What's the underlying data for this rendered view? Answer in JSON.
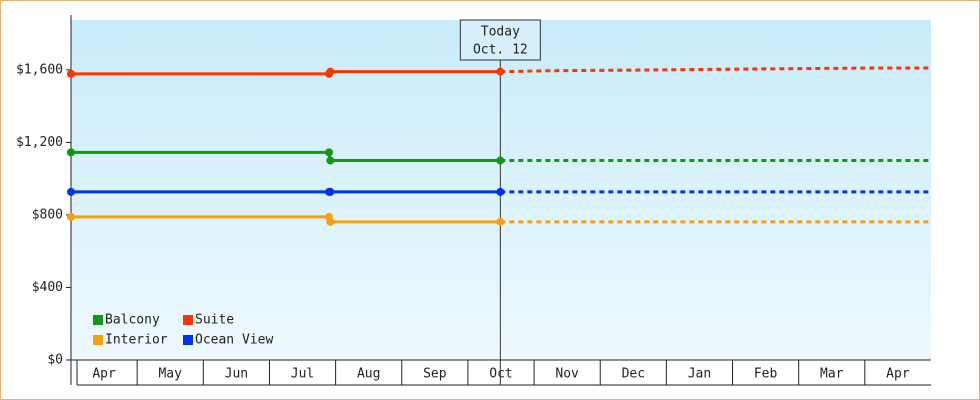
{
  "chart_data": {
    "type": "line",
    "categories": [
      "Apr",
      "May",
      "Jun",
      "Jul",
      "Aug",
      "Sep",
      "Oct",
      "Nov",
      "Dec",
      "Jan",
      "Feb",
      "Mar",
      "Apr"
    ],
    "xlim": [
      0,
      13
    ],
    "ylim": [
      0,
      1875
    ],
    "yticks": [
      {
        "value": 0,
        "label": "$0"
      },
      {
        "value": 400,
        "label": "$400"
      },
      {
        "value": 800,
        "label": "$800"
      },
      {
        "value": 1200,
        "label": "$1,200"
      },
      {
        "value": 1600,
        "label": "$1,600"
      }
    ],
    "today": {
      "x": 6.49,
      "label": "Today",
      "date": "Oct. 12"
    },
    "legend_position": "lower left",
    "series": [
      {
        "name": "Balcony",
        "color": "#119911",
        "x": [
          0,
          3.9,
          3.92,
          6.49
        ],
        "values": [
          1145,
          1145,
          1100,
          1100
        ],
        "forecast_x": [
          6.49,
          13
        ],
        "forecast_values": [
          1100,
          1100
        ]
      },
      {
        "name": "Suite",
        "color": "#ff3300",
        "x": [
          0,
          3.9,
          3.92,
          6.49
        ],
        "values": [
          1578,
          1578,
          1590,
          1590
        ],
        "forecast_x": [
          6.49,
          7.2,
          8.9,
          10.4,
          12.1,
          13
        ],
        "forecast_values": [
          1590,
          1595,
          1600,
          1605,
          1610,
          1610
        ]
      },
      {
        "name": "Interior",
        "color": "#f5a010",
        "x": [
          0,
          3.9,
          3.92,
          6.49
        ],
        "values": [
          789,
          789,
          762,
          762
        ],
        "forecast_x": [
          6.49,
          13
        ],
        "forecast_values": [
          762,
          762
        ]
      },
      {
        "name": "Ocean View",
        "color": "#0033ee",
        "x": [
          0,
          3.9,
          3.92,
          6.49
        ],
        "values": [
          927,
          927,
          927,
          927
        ],
        "forecast_x": [
          6.49,
          13
        ],
        "forecast_values": [
          927,
          927
        ]
      }
    ]
  }
}
